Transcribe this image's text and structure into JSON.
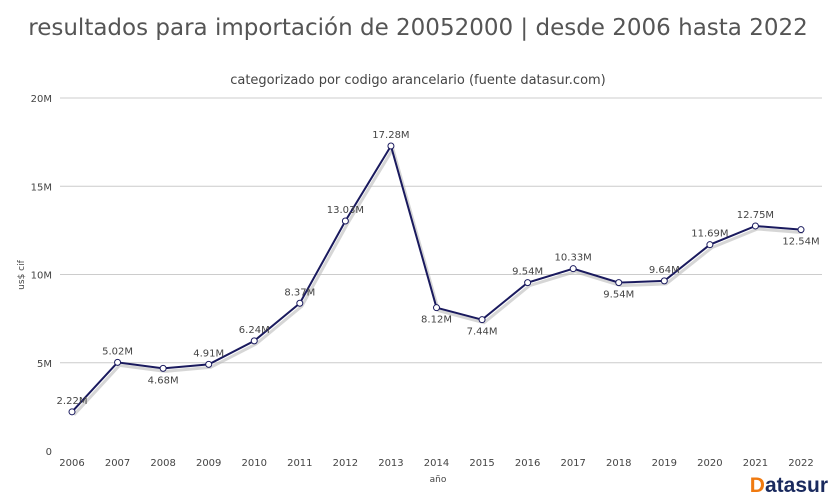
{
  "chart_data": {
    "type": "line",
    "title": "resultados para importación de 20052000 | desde 2006 hasta 2022",
    "subtitle": "categorizado por codigo arancelario (fuente datasur.com)",
    "xlabel": "año",
    "ylabel": "us$ cif",
    "ylim": [
      0,
      20000000
    ],
    "yticks": [
      {
        "v": 0,
        "l": "0"
      },
      {
        "v": 5000000,
        "l": "5M"
      },
      {
        "v": 10000000,
        "l": "10M"
      },
      {
        "v": 15000000,
        "l": "15M"
      },
      {
        "v": 20000000,
        "l": "20M"
      }
    ],
    "grid": true,
    "x": [
      "2006",
      "2007",
      "2008",
      "2009",
      "2010",
      "2011",
      "2012",
      "2013",
      "2014",
      "2015",
      "2016",
      "2017",
      "2018",
      "2019",
      "2020",
      "2021",
      "2022"
    ],
    "values": [
      2220000,
      5020000,
      4680000,
      4910000,
      6240000,
      8370000,
      13030000,
      17280000,
      8120000,
      7440000,
      9540000,
      10330000,
      9540000,
      9640000,
      11690000,
      12750000,
      12540000
    ],
    "labels": [
      "2.22M",
      "5.02M",
      "4.68M",
      "4.91M",
      "6.24M",
      "8.37M",
      "13.03M",
      "17.28M",
      "8.12M",
      "7.44M",
      "9.54M",
      "10.33M",
      "9.54M",
      "9.64M",
      "11.69M",
      "12.75M",
      "12.54M"
    ],
    "label_below": [
      false,
      false,
      true,
      false,
      false,
      false,
      false,
      false,
      true,
      true,
      false,
      false,
      true,
      false,
      false,
      false,
      true
    ],
    "line_color": "#1a1a5e"
  },
  "logo": {
    "d": "D",
    "rest": "atasur"
  }
}
